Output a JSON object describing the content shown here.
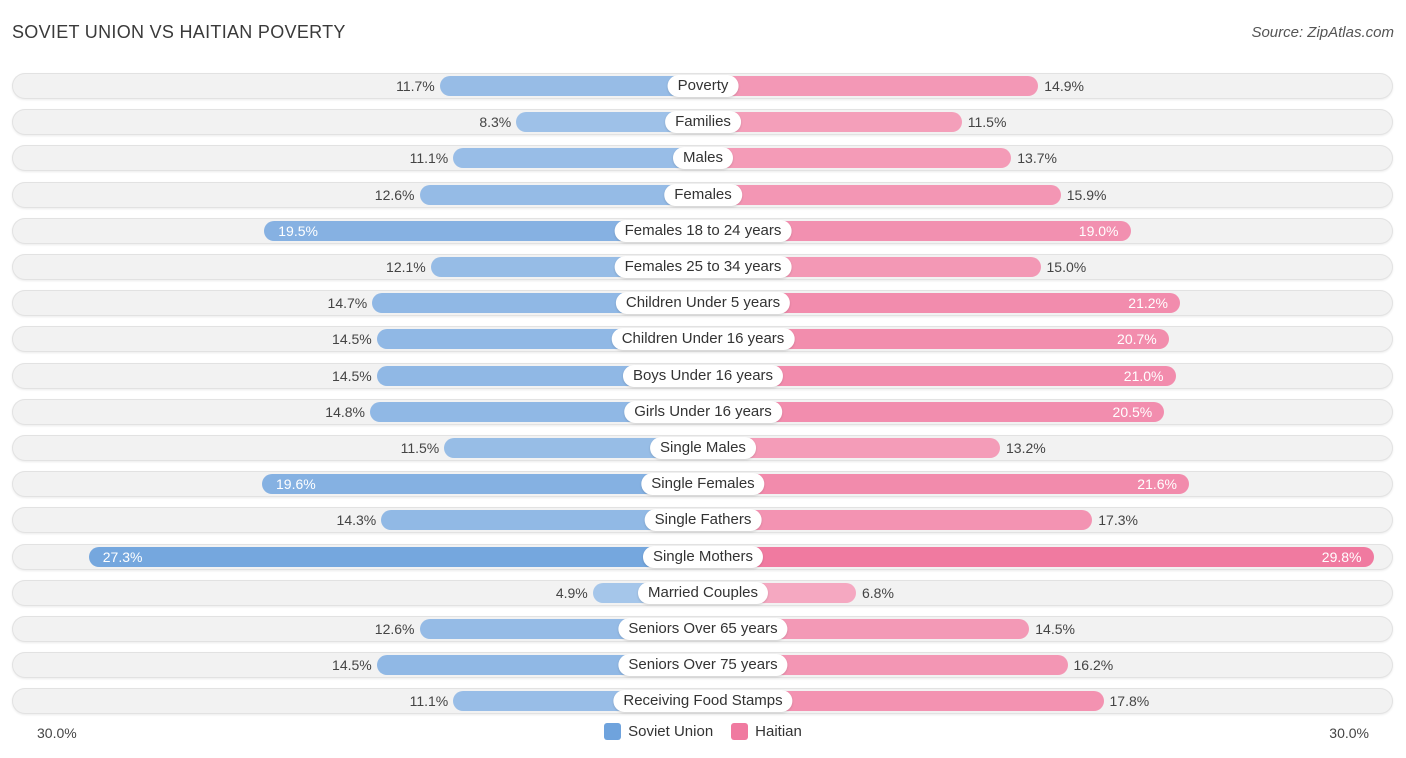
{
  "header": {
    "title": "SOVIET UNION VS HAITIAN POVERTY",
    "source": "Source: ZipAtlas.com"
  },
  "chart_data": {
    "type": "bar",
    "orientation": "horizontal-diverging",
    "title": "SOVIET UNION VS HAITIAN POVERTY",
    "categories": [
      "Poverty",
      "Families",
      "Males",
      "Females",
      "Females 18 to 24 years",
      "Females 25 to 34 years",
      "Children Under 5 years",
      "Children Under 16 years",
      "Boys Under 16 years",
      "Girls Under 16 years",
      "Single Males",
      "Single Females",
      "Single Fathers",
      "Single Mothers",
      "Married Couples",
      "Seniors Over 65 years",
      "Seniors Over 75 years",
      "Receiving Food Stamps"
    ],
    "series": [
      {
        "name": "Soviet Union",
        "color": "#6fa3dd",
        "values": [
          11.7,
          8.3,
          11.1,
          12.6,
          19.5,
          12.1,
          14.7,
          14.5,
          14.5,
          14.8,
          11.5,
          19.6,
          14.3,
          27.3,
          4.9,
          12.6,
          14.5,
          11.1
        ],
        "labels": [
          "11.7%",
          "8.3%",
          "11.1%",
          "12.6%",
          "19.5%",
          "12.1%",
          "14.7%",
          "14.5%",
          "14.5%",
          "14.8%",
          "11.5%",
          "19.6%",
          "14.3%",
          "27.3%",
          "4.9%",
          "12.6%",
          "14.5%",
          "11.1%"
        ]
      },
      {
        "name": "Haitian",
        "color": "#f07aa0",
        "values": [
          14.9,
          11.5,
          13.7,
          15.9,
          19.0,
          15.0,
          21.2,
          20.7,
          21.0,
          20.5,
          13.2,
          21.6,
          17.3,
          29.8,
          6.8,
          14.5,
          16.2,
          17.8
        ],
        "labels": [
          "14.9%",
          "11.5%",
          "13.7%",
          "15.9%",
          "19.0%",
          "15.0%",
          "21.2%",
          "20.7%",
          "21.0%",
          "20.5%",
          "13.2%",
          "21.6%",
          "17.3%",
          "29.8%",
          "6.8%",
          "14.5%",
          "16.2%",
          "17.8%"
        ]
      }
    ],
    "xlim": [
      0,
      30.0
    ],
    "axis_labels": {
      "left": "30.0%",
      "right": "30.0%"
    },
    "legend_position": "bottom-center"
  }
}
